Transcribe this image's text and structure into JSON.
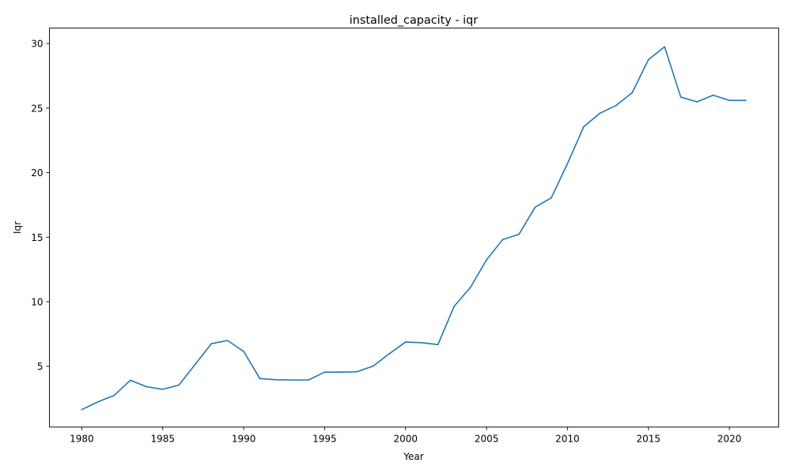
{
  "chart_data": {
    "type": "line",
    "title": "installed_capacity - iqr",
    "xlabel": "Year",
    "ylabel": "Iqr",
    "xlim": [
      1978,
      2023.05
    ],
    "ylim": [
      0.3,
      31.2
    ],
    "xticks": [
      1980,
      1985,
      1990,
      1995,
      2000,
      2005,
      2010,
      2015,
      2020
    ],
    "yticks": [
      5,
      10,
      15,
      20,
      25,
      30
    ],
    "grid": false,
    "legend": "none",
    "series": [
      {
        "color": "#1f77b4",
        "x": [
          1980,
          1981,
          1982,
          1983,
          1984,
          1985,
          1986,
          1987,
          1988,
          1989,
          1990,
          1991,
          1992,
          1993,
          1994,
          1995,
          1996,
          1997,
          1998,
          1999,
          2000,
          2001,
          2002,
          2003,
          2004,
          2005,
          2006,
          2007,
          2008,
          2009,
          2010,
          2011,
          2012,
          2013,
          2014,
          2015,
          2016,
          2017,
          2018,
          2019,
          2020,
          2021
        ],
        "y": [
          1.65,
          2.25,
          2.75,
          3.92,
          3.42,
          3.22,
          3.55,
          5.15,
          6.75,
          7.0,
          6.15,
          4.05,
          3.96,
          3.94,
          3.94,
          4.55,
          4.55,
          4.58,
          5.02,
          5.98,
          6.88,
          6.83,
          6.68,
          9.65,
          11.1,
          13.25,
          14.82,
          15.22,
          17.32,
          18.05,
          20.7,
          23.55,
          24.6,
          25.2,
          26.2,
          28.75,
          29.75,
          25.85,
          25.48,
          26.0,
          25.6,
          25.6
        ]
      }
    ]
  }
}
